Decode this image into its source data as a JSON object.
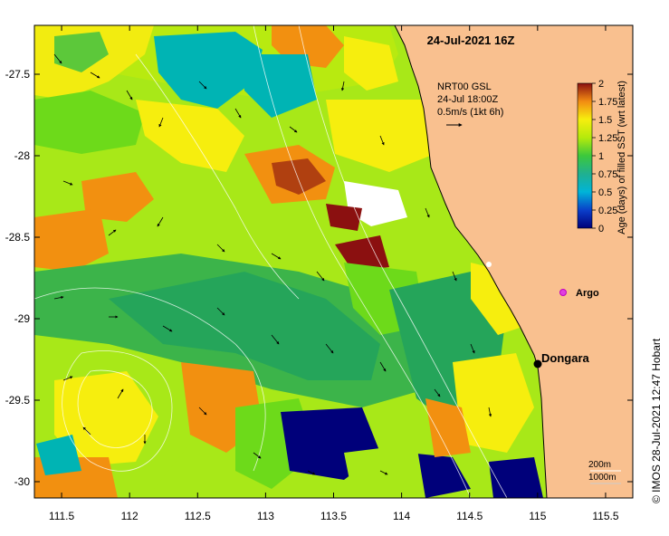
{
  "title": "24-Jul-2021 16Z",
  "current_legend": {
    "line1": "NRT00 GSL",
    "line2": "24-Jul 18:00Z",
    "line3": "0.5m/s (1kt 6h)"
  },
  "colorbar": {
    "label": "Age (days) of filled SST (wrt latest)",
    "ticks": [
      "0",
      "0.25",
      "0.5",
      "0.75",
      "1",
      "1.25",
      "1.5",
      "1.75",
      "2"
    ]
  },
  "markers": {
    "argo_label": "Argo",
    "place_label": "Dongara"
  },
  "depth_legend": [
    "200m",
    "1000m"
  ],
  "credit": "© IMOS 28-Jul-2021 12:47 Hobart",
  "axes": {
    "x_ticks": [
      "111.5",
      "112",
      "112.5",
      "113",
      "113.5",
      "114",
      "114.5",
      "115",
      "115.5"
    ],
    "y_ticks": [
      "-27.5",
      "-28",
      "-28.5",
      "-29",
      "-29.5",
      "-30"
    ]
  },
  "colors": {
    "land": "#F9C08F",
    "age_0": "#00007A",
    "age_0.5": "#00B4B4",
    "age_0.75": "#25A55A",
    "age_1": "#6DDA1A",
    "age_1.25": "#B5EA0C",
    "age_1.5": "#F6EE0E",
    "age_1.75": "#F28C12",
    "age_2": "#8B1010",
    "argo": "#E040E0"
  }
}
